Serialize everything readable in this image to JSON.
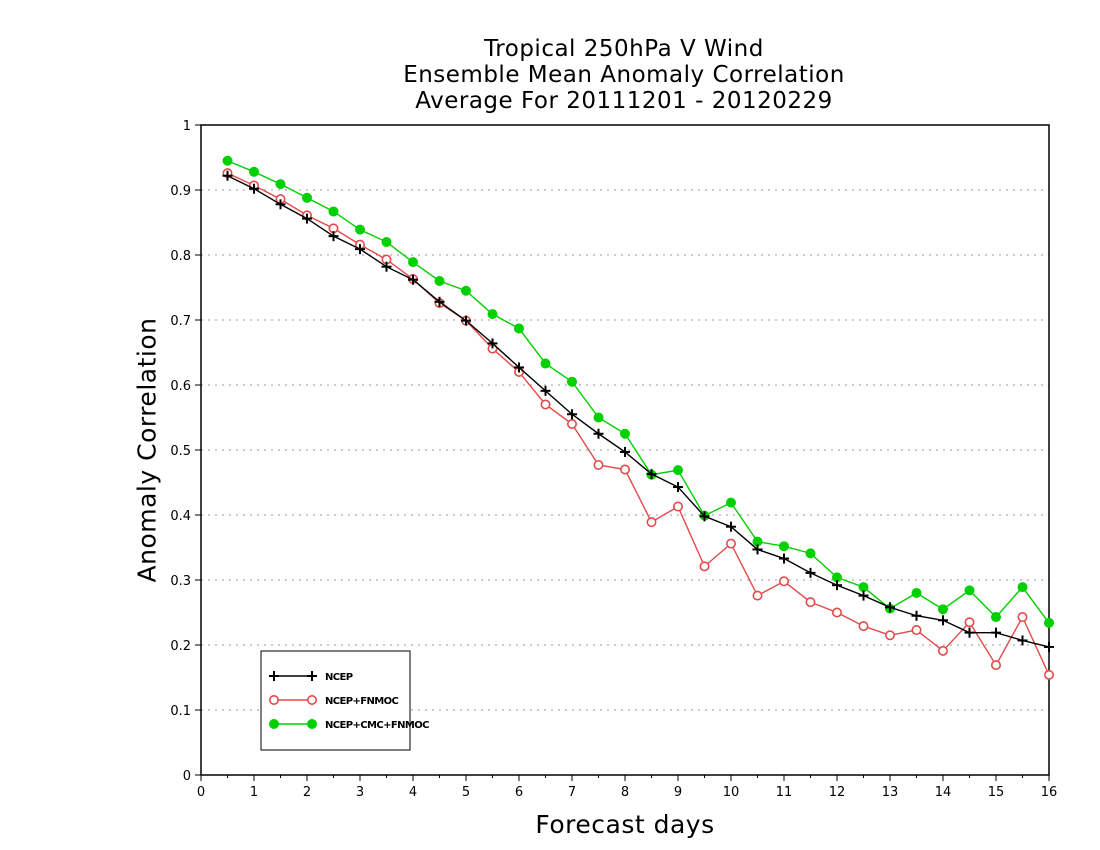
{
  "chart_data": {
    "type": "line",
    "title": [
      "Tropical 250hPa V Wind",
      "Ensemble Mean Anomaly Correlation",
      "Average For 20111201 - 20120229"
    ],
    "xlabel": "Forecast days",
    "ylabel": "Anomaly Correlation",
    "xlim": [
      0,
      16
    ],
    "ylim": [
      0,
      1
    ],
    "xticks": [
      "0",
      "1",
      "2",
      "3",
      "4",
      "5",
      "6",
      "7",
      "8",
      "9",
      "10",
      "11",
      "12",
      "13",
      "14",
      "15",
      "16"
    ],
    "yticks": [
      "0",
      "0.1",
      "0.2",
      "0.3",
      "0.4",
      "0.5",
      "0.6",
      "0.7",
      "0.8",
      "0.9",
      "1"
    ],
    "grid": "horizontal dotted",
    "legend_position": "bottom-left",
    "x": [
      0.5,
      1,
      1.5,
      2,
      2.5,
      3,
      3.5,
      4,
      4.5,
      5,
      5.5,
      6,
      6.5,
      7,
      7.5,
      8,
      8.5,
      9,
      9.5,
      10,
      10.5,
      11,
      11.5,
      12,
      12.5,
      13,
      13.5,
      14,
      14.5,
      15,
      15.5,
      16
    ],
    "series": [
      {
        "name": "NCEP",
        "color": "#000000",
        "marker": "plus",
        "values": [
          0.922,
          0.902,
          0.878,
          0.856,
          0.829,
          0.809,
          0.782,
          0.762,
          0.728,
          0.699,
          0.664,
          0.627,
          0.591,
          0.555,
          0.525,
          0.497,
          0.463,
          0.443,
          0.398,
          0.382,
          0.347,
          0.333,
          0.311,
          0.292,
          0.276,
          0.258,
          0.245,
          0.238,
          0.219,
          0.219,
          0.207,
          0.197
        ]
      },
      {
        "name": "NCEP+FNMOC",
        "color": "#e34a4a",
        "marker": "open-circle",
        "values": [
          0.926,
          0.907,
          0.886,
          0.861,
          0.841,
          0.816,
          0.793,
          0.763,
          0.726,
          0.699,
          0.656,
          0.62,
          0.57,
          0.54,
          0.477,
          0.47,
          0.389,
          0.413,
          0.321,
          0.356,
          0.276,
          0.298,
          0.266,
          0.25,
          0.229,
          0.215,
          0.223,
          0.191,
          0.235,
          0.169,
          0.243,
          0.154
        ]
      },
      {
        "name": "NCEP+CMC+FNMOC",
        "color": "#00d000",
        "marker": "filled-circle",
        "values": [
          0.945,
          0.928,
          0.909,
          0.888,
          0.867,
          0.839,
          0.82,
          0.789,
          0.76,
          0.745,
          0.709,
          0.687,
          0.633,
          0.605,
          0.55,
          0.525,
          0.462,
          0.469,
          0.399,
          0.419,
          0.359,
          0.352,
          0.341,
          0.304,
          0.289,
          0.256,
          0.28,
          0.255,
          0.284,
          0.243,
          0.289,
          0.234
        ]
      }
    ]
  }
}
